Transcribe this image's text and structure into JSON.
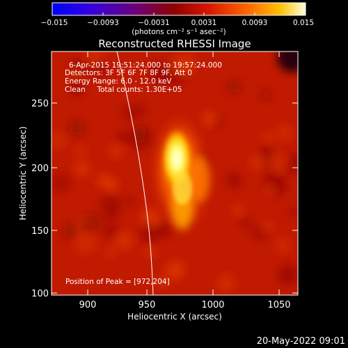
{
  "colorbar": {
    "tick_labels": [
      "−0.015",
      "−0.0093",
      "−0.0031",
      "0.0031",
      "0.0093",
      "0.015"
    ],
    "unit_label": "(photons cm⁻² s⁻¹ asec⁻²)"
  },
  "plot": {
    "title": "Reconstructed RHESSI Image",
    "xlabel": "Heliocentric X (arcsec)",
    "ylabel": "Heliocentric Y (arcsec)",
    "x_ticks": [
      "900",
      "950",
      "1000",
      "1050"
    ],
    "y_ticks": [
      "100",
      "150",
      "200",
      "250"
    ],
    "xlim": [
      873,
      1066
    ],
    "ylim": [
      97,
      290
    ]
  },
  "annotations": {
    "line1": "6-Apr-2015 19:51:24.000 to 19:57:24.000",
    "line2": "Detectors: 3F 5F 6F 7F 8F 9F, Att 0",
    "line3": "Energy Range: 6.0 - 12.0 keV",
    "line4": "Clean     Total counts: 1.30E+05",
    "peak": "Position of Peak = [972,204]"
  },
  "footer": {
    "date": "20-May-2022 09:01"
  }
}
